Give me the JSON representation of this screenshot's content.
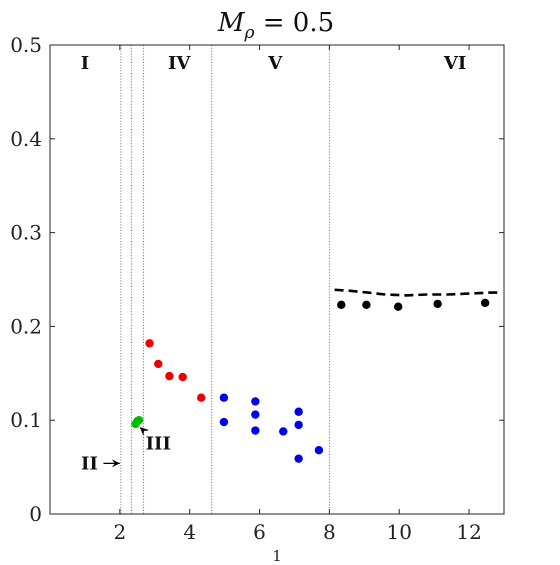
{
  "chart_data": {
    "type": "scatter",
    "title": "M_ρ = 0.5",
    "title_parts": {
      "symbol": "M",
      "subscript": "ρ",
      "rest": " = 0.5"
    },
    "xlabel": "1",
    "ylabel": "",
    "xlim": [
      0,
      13
    ],
    "ylim": [
      0,
      0.5
    ],
    "xticks": [
      2,
      4,
      6,
      8,
      10,
      12
    ],
    "yticks": [
      0,
      0.1,
      0.2,
      0.3,
      0.4,
      0.5
    ],
    "xtick_labels": [
      "2",
      "4",
      "6",
      "8",
      "10",
      "12"
    ],
    "ytick_labels": [
      "0",
      "0.1",
      "0.2",
      "0.3",
      "0.4",
      "0.5"
    ],
    "grid": false,
    "region_boundaries": [
      2.03,
      2.33,
      2.68,
      4.63,
      8.0
    ],
    "region_labels": [
      {
        "text": "I",
        "x": 1.0,
        "y": 0.481
      },
      {
        "text": "IV",
        "x": 3.7,
        "y": 0.481
      },
      {
        "text": "V",
        "x": 6.45,
        "y": 0.481
      },
      {
        "text": "VI",
        "x": 11.6,
        "y": 0.481
      }
    ],
    "annotations": [
      {
        "text": "II",
        "x": 1.13,
        "y": 0.054,
        "arrow_to": [
          2.0,
          0.054
        ]
      },
      {
        "text": "III",
        "x": 3.1,
        "y": 0.075,
        "arrow_to": [
          2.58,
          0.092
        ]
      }
    ],
    "series": [
      {
        "color": "#00bb00",
        "points": [
          [
            2.45,
            0.096
          ],
          [
            2.5,
            0.099
          ],
          [
            2.55,
            0.1
          ]
        ]
      },
      {
        "color": "#ee0000",
        "points": [
          [
            2.85,
            0.182
          ],
          [
            3.1,
            0.16
          ],
          [
            3.42,
            0.147
          ],
          [
            3.8,
            0.146
          ],
          [
            4.33,
            0.124
          ]
        ]
      },
      {
        "color": "#0000ee",
        "points": [
          [
            4.98,
            0.124
          ],
          [
            4.98,
            0.098
          ],
          [
            5.88,
            0.12
          ],
          [
            5.88,
            0.106
          ],
          [
            5.88,
            0.089
          ],
          [
            6.68,
            0.088
          ],
          [
            7.12,
            0.109
          ],
          [
            7.12,
            0.095
          ],
          [
            7.12,
            0.059
          ],
          [
            7.7,
            0.068
          ]
        ]
      },
      {
        "color": "#000000",
        "points": [
          [
            8.34,
            0.223
          ],
          [
            9.06,
            0.223
          ],
          [
            9.97,
            0.221
          ],
          [
            11.1,
            0.224
          ],
          [
            12.46,
            0.225
          ]
        ]
      }
    ],
    "dashed_line": {
      "color": "#000000",
      "points": [
        [
          8.15,
          0.239
        ],
        [
          8.6,
          0.238
        ],
        [
          9.1,
          0.236
        ],
        [
          9.6,
          0.234
        ],
        [
          10.2,
          0.233
        ],
        [
          10.8,
          0.234
        ],
        [
          11.4,
          0.234
        ],
        [
          12.0,
          0.235
        ],
        [
          12.6,
          0.236
        ],
        [
          12.95,
          0.236
        ]
      ]
    }
  }
}
